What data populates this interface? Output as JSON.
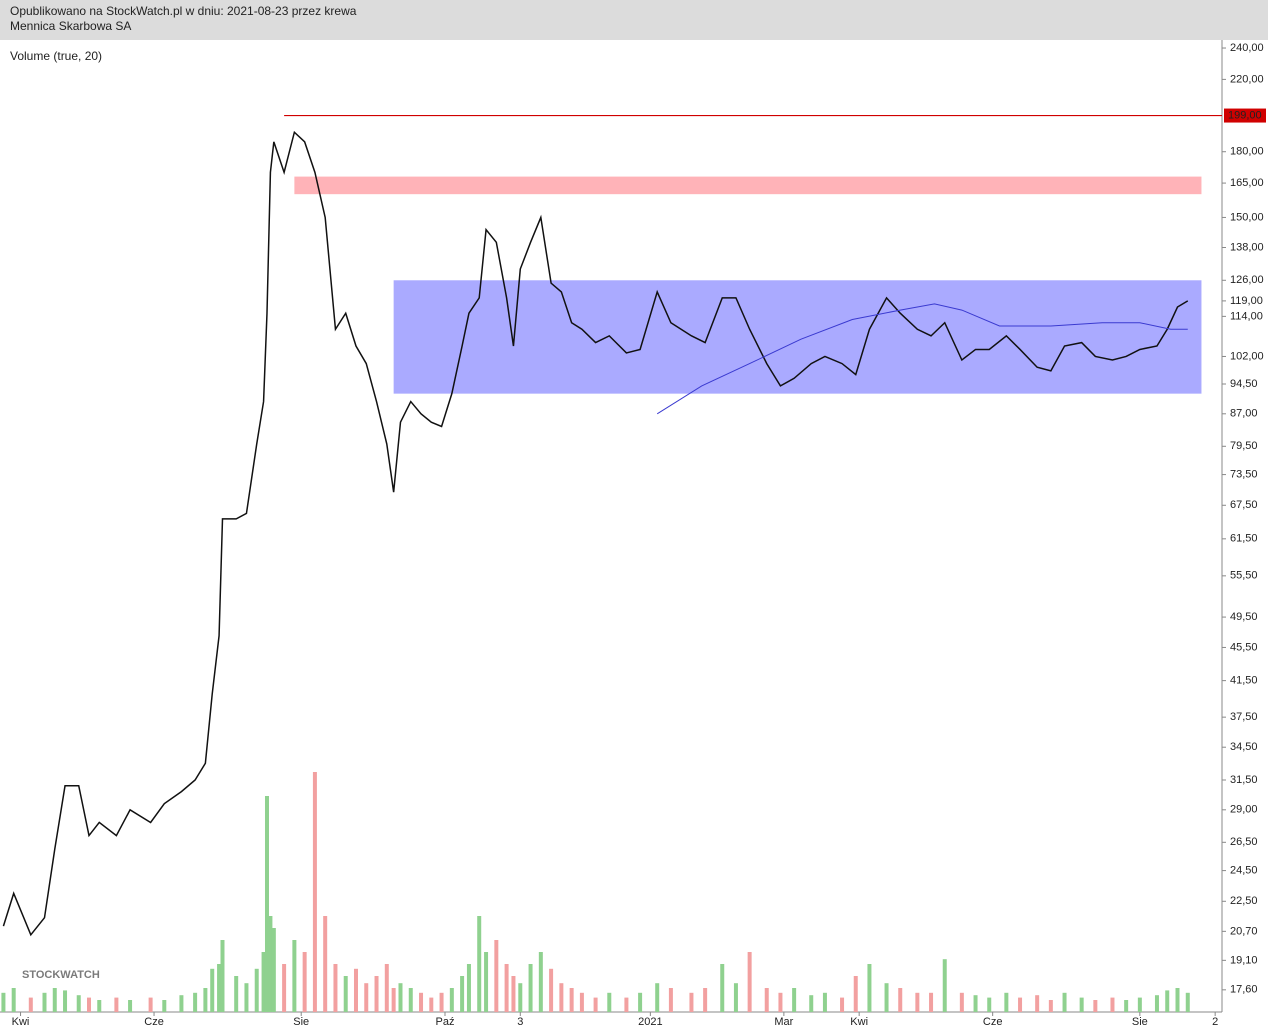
{
  "header": {
    "line1": "Opublikowano na StockWatch.pl w dniu: 2021-08-23 przez krewa",
    "line2": "Mennica Skarbowa SA"
  },
  "chart_data": {
    "type": "line",
    "indicator_label": "Volume (true, 20)",
    "watermark": "STOCKWATCH",
    "log_scale": true,
    "xlim": [
      -5,
      352
    ],
    "xticks": [
      {
        "value": 1,
        "label": "Kwi"
      },
      {
        "value": 40,
        "label": "Cze"
      },
      {
        "value": 83,
        "label": "Sie"
      },
      {
        "value": 125,
        "label": "Paź"
      },
      {
        "value": 147,
        "label": "3"
      },
      {
        "value": 185,
        "label": "2021"
      },
      {
        "value": 224,
        "label": "Mar"
      },
      {
        "value": 246,
        "label": "Kwi"
      },
      {
        "value": 285,
        "label": "Cze"
      },
      {
        "value": 328,
        "label": "Sie"
      },
      {
        "value": 350,
        "label": "2"
      }
    ],
    "ylim": [
      16.55,
      245.4
    ],
    "yticks": [
      {
        "value": 240,
        "label": "240,00"
      },
      {
        "value": 220,
        "label": "220,00"
      },
      {
        "value": 180,
        "label": "180,00"
      },
      {
        "value": 165,
        "label": "165,00"
      },
      {
        "value": 150,
        "label": "150,00"
      },
      {
        "value": 138,
        "label": "138,00"
      },
      {
        "value": 126,
        "label": "126,00"
      },
      {
        "value": 119,
        "label": "119,00"
      },
      {
        "value": 114,
        "label": "114,00"
      },
      {
        "value": 102,
        "label": "102,00"
      },
      {
        "value": 94.5,
        "label": "94,50"
      },
      {
        "value": 87,
        "label": "87,00"
      },
      {
        "value": 79.5,
        "label": "79,50"
      },
      {
        "value": 73.5,
        "label": "73,50"
      },
      {
        "value": 67.5,
        "label": "67,50"
      },
      {
        "value": 61.5,
        "label": "61,50"
      },
      {
        "value": 55.5,
        "label": "55,50"
      },
      {
        "value": 49.5,
        "label": "49,50"
      },
      {
        "value": 45.5,
        "label": "45,50"
      },
      {
        "value": 41.5,
        "label": "41,50"
      },
      {
        "value": 37.5,
        "label": "37,50"
      },
      {
        "value": 34.5,
        "label": "34,50"
      },
      {
        "value": 31.5,
        "label": "31,50"
      },
      {
        "value": 29,
        "label": "29,00"
      },
      {
        "value": 26.5,
        "label": "26,50"
      },
      {
        "value": 24.5,
        "label": "24,50"
      },
      {
        "value": 22.5,
        "label": "22,50"
      },
      {
        "value": 20.7,
        "label": "20,70"
      },
      {
        "value": 19.1,
        "label": "19,10"
      },
      {
        "value": 17.6,
        "label": "17,60"
      }
    ],
    "x": [
      -4,
      -1,
      4,
      8,
      11,
      14,
      18,
      21,
      24,
      29,
      33,
      39,
      43,
      48,
      52,
      55,
      57,
      59,
      60,
      64,
      67,
      70,
      72,
      73,
      74,
      75,
      78,
      81,
      84,
      87,
      90,
      93,
      96,
      99,
      102,
      105,
      108,
      110,
      112,
      115,
      118,
      121,
      124,
      127,
      130,
      132,
      135,
      137,
      140,
      143,
      145,
      147,
      150,
      153,
      156,
      159,
      162,
      165,
      169,
      173,
      178,
      182,
      187,
      191,
      197,
      201,
      206,
      210,
      214,
      219,
      223,
      227,
      232,
      236,
      241,
      245,
      249,
      254,
      258,
      263,
      267,
      271,
      276,
      280,
      284,
      289,
      293,
      298,
      302,
      306,
      311,
      315,
      320,
      324,
      328,
      333,
      336,
      339,
      342
    ],
    "series": [
      {
        "color": "#111111",
        "values": [
          21,
          23,
          20.5,
          21.5,
          26,
          31,
          31,
          27,
          28,
          27,
          29,
          28,
          29.5,
          30.5,
          31.5,
          33,
          40,
          47,
          65,
          65,
          66,
          80,
          90,
          115,
          170,
          185,
          170,
          190,
          185,
          170,
          150,
          110,
          115,
          105,
          100,
          90,
          80,
          70,
          85,
          90,
          87,
          85,
          84,
          92,
          105,
          115,
          120,
          145,
          140,
          120,
          105,
          130,
          140,
          150,
          125,
          122,
          112,
          110,
          106,
          108,
          103,
          104,
          122,
          112,
          108,
          106,
          120,
          120,
          110,
          100,
          94,
          96,
          100,
          102,
          100,
          97,
          110,
          120,
          115,
          110,
          108,
          112,
          101,
          104,
          104,
          108,
          104,
          99,
          98,
          105,
          106,
          102,
          101,
          102,
          104,
          105,
          110,
          117,
          119
        ]
      }
    ],
    "volume": {
      "vlim": [
        0,
        100
      ],
      "up_color": "#8fd18f",
      "down_color": "#f2a0a0",
      "values": [
        8,
        10,
        6,
        8,
        10,
        9,
        7,
        6,
        5,
        6,
        5,
        6,
        5,
        7,
        8,
        10,
        18,
        20,
        30,
        15,
        12,
        18,
        25,
        90,
        40,
        35,
        20,
        30,
        25,
        100,
        40,
        20,
        15,
        18,
        12,
        15,
        20,
        10,
        12,
        10,
        8,
        6,
        8,
        10,
        15,
        20,
        40,
        25,
        30,
        20,
        15,
        12,
        20,
        25,
        18,
        12,
        10,
        8,
        6,
        8,
        6,
        8,
        12,
        10,
        8,
        10,
        20,
        12,
        25,
        10,
        8,
        10,
        7,
        8,
        6,
        15,
        20,
        12,
        10,
        8,
        8,
        22,
        8,
        7,
        6,
        8,
        6,
        7,
        5,
        8,
        6,
        5,
        6,
        5,
        6,
        7,
        9,
        10,
        8
      ]
    },
    "ma": {
      "color": "#3a3ad0",
      "x": [
        187,
        200,
        214,
        229,
        244,
        258,
        268,
        276,
        287,
        302,
        317,
        328,
        337,
        342
      ],
      "values": [
        87,
        94,
        100,
        107,
        113,
        116,
        118,
        116,
        111,
        111,
        112,
        112,
        110,
        110
      ]
    },
    "bands": [
      {
        "color": "#aaaaff",
        "x": [
          110,
          346
        ],
        "y": [
          92,
          126
        ]
      },
      {
        "color": "#ffb3b8",
        "x": [
          81,
          346
        ],
        "y": [
          160,
          168
        ]
      }
    ],
    "levels": [
      {
        "value": 199,
        "label": "199,00",
        "color": "#d00000",
        "x_start": 78
      }
    ]
  }
}
